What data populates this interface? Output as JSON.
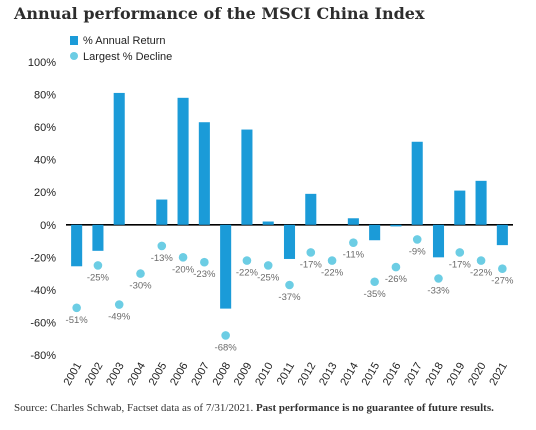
{
  "title": "Annual performance of the MSCI China Index",
  "source_text": "Source: Charles Schwab, Factset data as of 7/31/2021. ",
  "source_bold": "Past performance is no guarantee of future results.",
  "colors": {
    "bar": "#1b9bd8",
    "dot": "#6ccde4",
    "axis": "#000000"
  },
  "chart_data": {
    "type": "bar",
    "title": "Annual performance of the MSCI China Index",
    "xlabel": "",
    "ylabel": "",
    "ylim": [
      -80,
      100
    ],
    "yticks": [
      -80,
      -60,
      -40,
      -20,
      0,
      20,
      40,
      60,
      80,
      100
    ],
    "ytick_labels": [
      "-80%",
      "-60%",
      "-40%",
      "-20%",
      "0%",
      "20%",
      "40%",
      "60%",
      "80%",
      "100%"
    ],
    "grid": false,
    "legend": "top-left",
    "categories": [
      "2001",
      "2002",
      "2003",
      "2004",
      "2005",
      "2006",
      "2007",
      "2008",
      "2009",
      "2010",
      "2011",
      "2012",
      "2013",
      "2014",
      "2015",
      "2016",
      "2017",
      "2018",
      "2019",
      "2020",
      "2021"
    ],
    "series": [
      {
        "name": "% Annual Return",
        "type": "bar",
        "values": [
          -25.5,
          -16,
          81,
          0,
          15.5,
          78,
          63,
          -51.5,
          58.5,
          2,
          -21,
          19,
          0,
          4,
          -9.5,
          -1,
          51,
          -20,
          21,
          27,
          -12.5
        ]
      },
      {
        "name": "Largest % Decline",
        "type": "scatter",
        "values": [
          -51,
          -25,
          -49,
          -30,
          -13,
          -20,
          -23,
          -68,
          -22,
          -25,
          -37,
          -17,
          -22,
          -11,
          -35,
          -26,
          -9,
          -33,
          -17,
          -22,
          -27
        ],
        "labels": [
          "-51%",
          "-25%",
          "-49%",
          "-30%",
          "-13%",
          "-20%",
          "-23%",
          "-68%",
          "-22%",
          "-25%",
          "-37%",
          "-17%",
          "-22%",
          "-11%",
          "-35%",
          "-26%",
          "-9%",
          "-33%",
          "-17%",
          "-22%",
          "-27%"
        ]
      }
    ]
  }
}
